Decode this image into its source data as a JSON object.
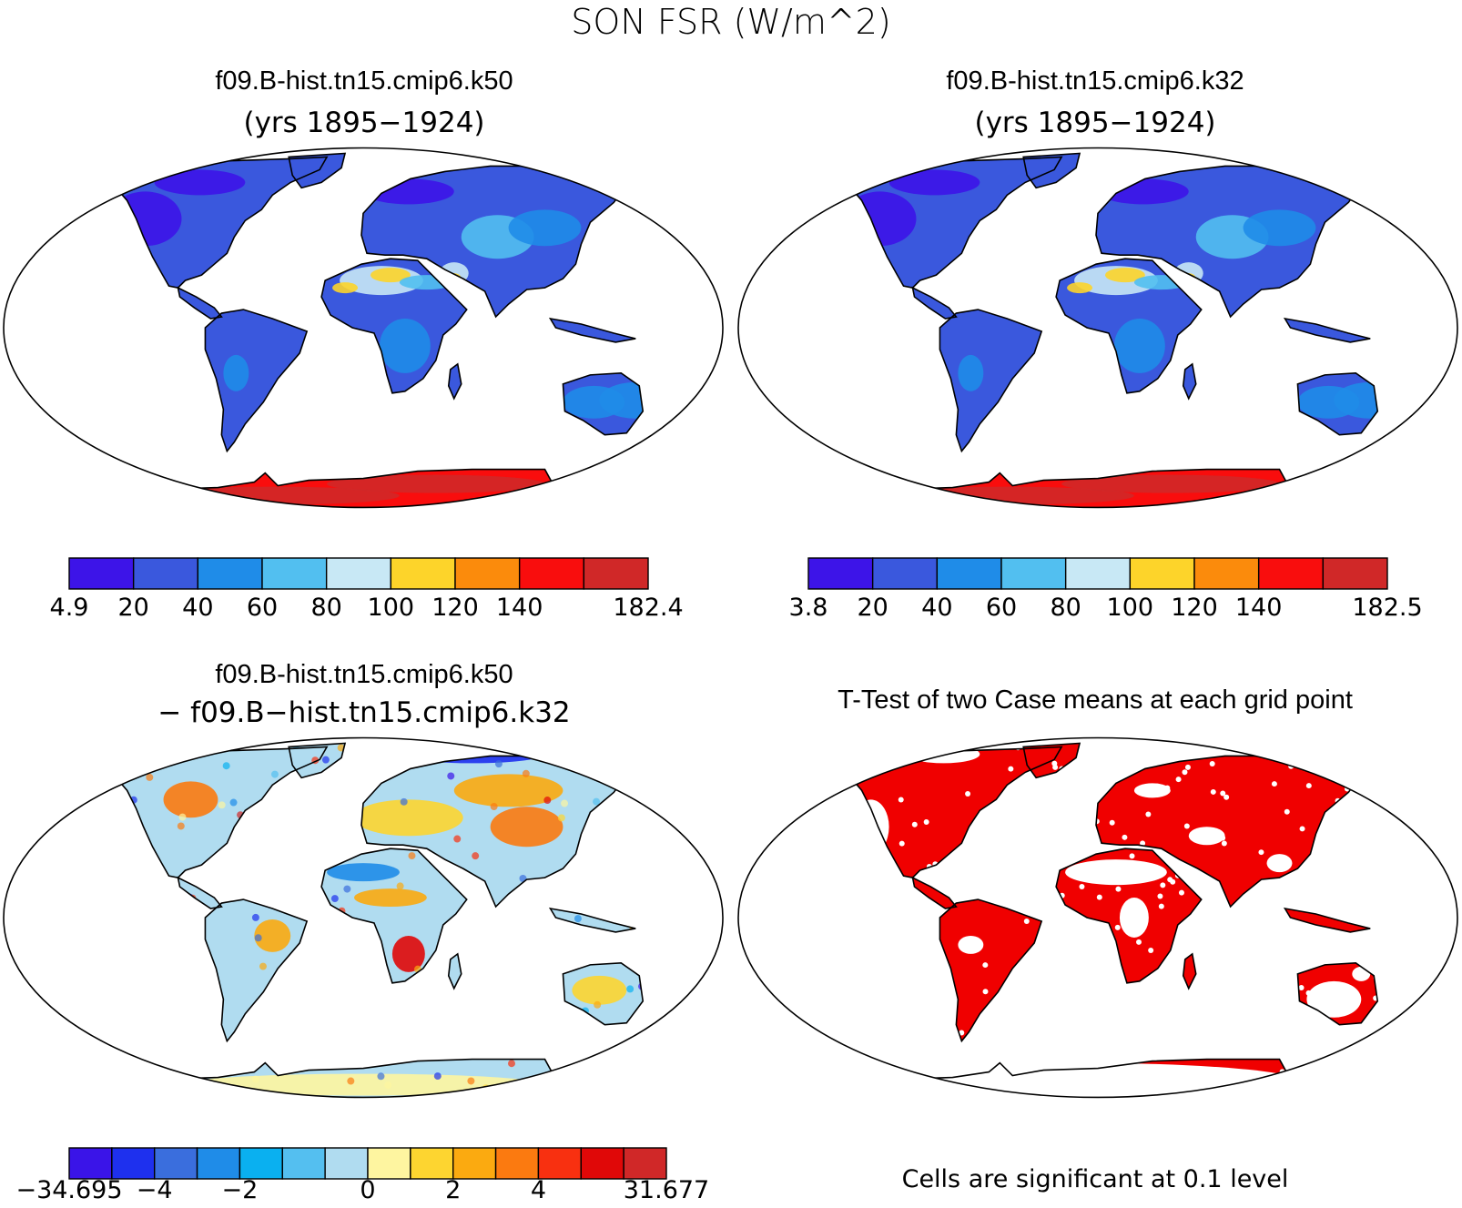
{
  "figure": {
    "title": "SON FSR (W/m^2)"
  },
  "panels": [
    {
      "id": "case1",
      "title": "f09.B-hist.tn15.cmip6.k50",
      "subtitle": "(yrs 1895−1924)"
    },
    {
      "id": "case2",
      "title": "f09.B-hist.tn15.cmip6.k32",
      "subtitle": "(yrs 1895−1924)"
    },
    {
      "id": "diff",
      "title": "f09.B-hist.tn15.cmip6.k50",
      "subtitle": "− f09.B−hist.tn15.cmip6.k32"
    },
    {
      "id": "ttest",
      "title": "T-Test of two Case means at each grid point",
      "subtitle": ""
    }
  ],
  "colorbars": {
    "case1": {
      "colors": [
        "#3d14e8",
        "#3a58dd",
        "#1f8ce8",
        "#52bff0",
        "#c8e8f5",
        "#fdd42a",
        "#fb8b0c",
        "#f90d0d",
        "#d02828"
      ],
      "labels": [
        "4.9",
        "20",
        "40",
        "60",
        "80",
        "100",
        "120",
        "140",
        "182.4"
      ],
      "label_edges": [
        0,
        1,
        2,
        3,
        4,
        5,
        6,
        7,
        9
      ]
    },
    "case2": {
      "colors": [
        "#3d14e8",
        "#3a58dd",
        "#1f8ce8",
        "#52bff0",
        "#c8e8f5",
        "#fdd42a",
        "#fb8b0c",
        "#f90d0d",
        "#d02828"
      ],
      "labels": [
        "3.8",
        "20",
        "40",
        "60",
        "80",
        "100",
        "120",
        "140",
        "182.5"
      ],
      "label_edges": [
        0,
        1,
        2,
        3,
        4,
        5,
        6,
        7,
        9
      ]
    },
    "diff": {
      "colors": [
        "#3a14e8",
        "#1e30ee",
        "#3a6edd",
        "#1f8ce8",
        "#0ab0f0",
        "#54bff0",
        "#b0dcf0",
        "#fef5a0",
        "#fdd530",
        "#fbaa10",
        "#fb7a10",
        "#f83010",
        "#e00808",
        "#d02828"
      ],
      "labels": [
        "−34.695",
        "−4",
        "−2",
        "0",
        "2",
        "4",
        "31.677"
      ],
      "label_edges": [
        0,
        2,
        4,
        7,
        9,
        11,
        14
      ]
    }
  },
  "ttest": {
    "note": "Cells are significant at 0.1 level",
    "color": "#f00000"
  }
}
